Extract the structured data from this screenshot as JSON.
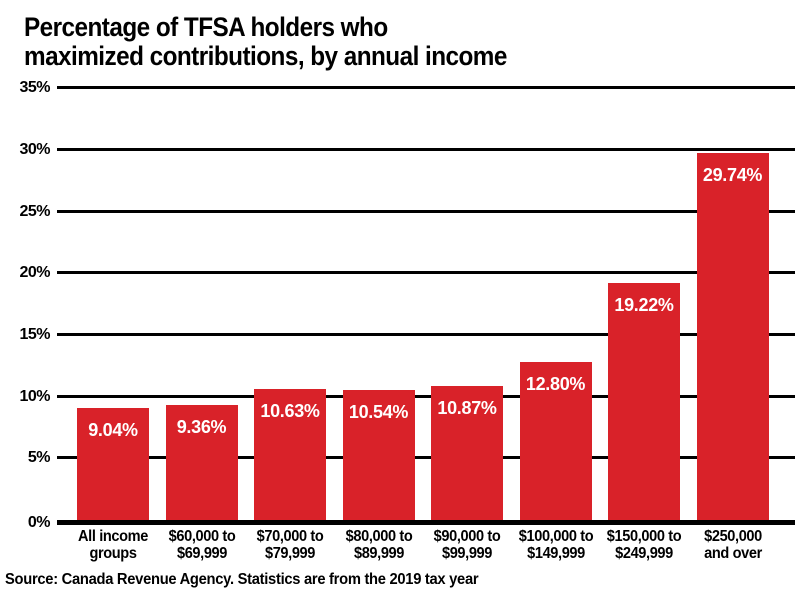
{
  "title": {
    "line1": "Percentage of TFSA holders who",
    "line2": "maximized contributions, by annual income"
  },
  "source": "Source: Canada Revenue Agency. Statistics are from the 2019 tax year",
  "colors": {
    "bar": "#d92229",
    "grid": "#000000",
    "bar_label_text": "#ffffff",
    "text": "#000000",
    "background": "#ffffff"
  },
  "y_axis": {
    "tick_labels": [
      "0%",
      "5%",
      "10%",
      "15%",
      "20%",
      "25%",
      "30%",
      "35%"
    ],
    "min": 0,
    "max": 35,
    "step": 5
  },
  "chart_data": {
    "type": "bar",
    "title": "Percentage of TFSA holders who maximized contributions, by annual income",
    "categories": [
      "All income groups",
      "$60,000 to $69,999",
      "$70,000 to $79,999",
      "$80,000 to $89,999",
      "$90,000 to $99,999",
      "$100,000 to $149,999",
      "$150,000 to $249,999",
      "$250,000 and over"
    ],
    "categories_lines": [
      [
        "All income",
        "groups"
      ],
      [
        "$60,000 to",
        "$69,999"
      ],
      [
        "$70,000 to",
        "$79,999"
      ],
      [
        "$80,000 to",
        "$89,999"
      ],
      [
        "$90,000 to",
        "$99,999"
      ],
      [
        "$100,000 to",
        "$149,999"
      ],
      [
        "$150,000 to",
        "$249,999"
      ],
      [
        "$250,000",
        "and over"
      ]
    ],
    "values": [
      9.04,
      9.36,
      10.63,
      10.54,
      10.87,
      12.8,
      19.22,
      29.74
    ],
    "value_labels": [
      "9.04%",
      "9.36%",
      "10.63%",
      "10.54%",
      "10.87%",
      "12.80%",
      "19.22%",
      "29.74%"
    ],
    "xlabel": "",
    "ylabel": "",
    "ylim": [
      0,
      35
    ],
    "grid": true,
    "legend": false,
    "value_labels_position": "inside-top",
    "source_note": "Source: Canada Revenue Agency. Statistics are from the 2019 tax year"
  }
}
